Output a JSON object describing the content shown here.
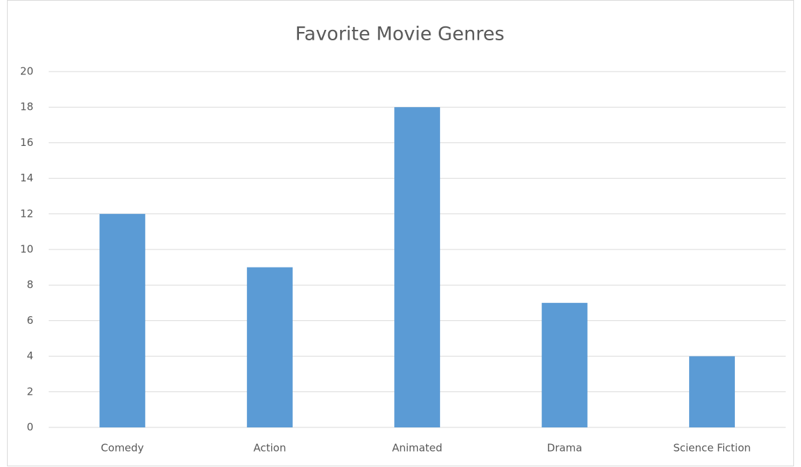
{
  "chart_data": {
    "type": "bar",
    "title": "Favorite Movie Genres",
    "categories": [
      "Comedy",
      "Action",
      "Animated",
      "Drama",
      "Science Fiction"
    ],
    "values": [
      12,
      9,
      18,
      7,
      4
    ],
    "color": "#5b9bd5",
    "ylim": [
      0,
      20
    ],
    "yticks": [
      0,
      2,
      4,
      6,
      8,
      10,
      12,
      14,
      16,
      18,
      20
    ],
    "grid": true
  }
}
